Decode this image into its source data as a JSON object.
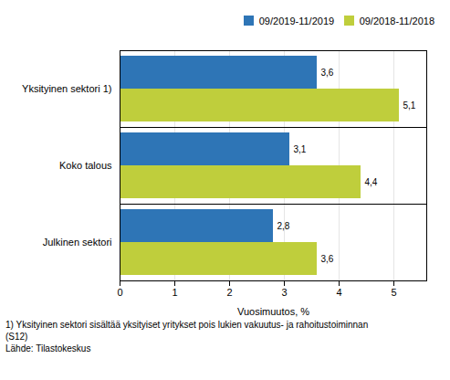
{
  "chart_data": {
    "type": "bar",
    "orientation": "horizontal",
    "categories": [
      "Julkinen sektori",
      "Koko talous",
      "Yksityinen sektori 1)"
    ],
    "series": [
      {
        "name": "09/2019-11/2019",
        "color": "#2E75B6",
        "values": [
          2.8,
          3.1,
          3.6
        ],
        "value_labels": [
          "2,8",
          "3,1",
          "3,6"
        ]
      },
      {
        "name": "09/2018-11/2018",
        "color": "#BFCE3C",
        "values": [
          3.6,
          4.4,
          5.1
        ],
        "value_labels": [
          "3,6",
          "4,4",
          "5,1"
        ]
      }
    ],
    "xlabel": "Vuosimuutos, %",
    "xlim": [
      0,
      5.6
    ],
    "xticks": [
      0,
      1,
      2,
      3,
      4,
      5
    ],
    "grid": true,
    "legend": "upper right",
    "data_labels": true,
    "annotations": [
      "1) Yksityinen sektori sisältää yksityiset yritykset pois lukien vakuutus- ja rahoitustoiminnan",
      "(S12)",
      "Lähde: Tilastokeskus"
    ]
  }
}
